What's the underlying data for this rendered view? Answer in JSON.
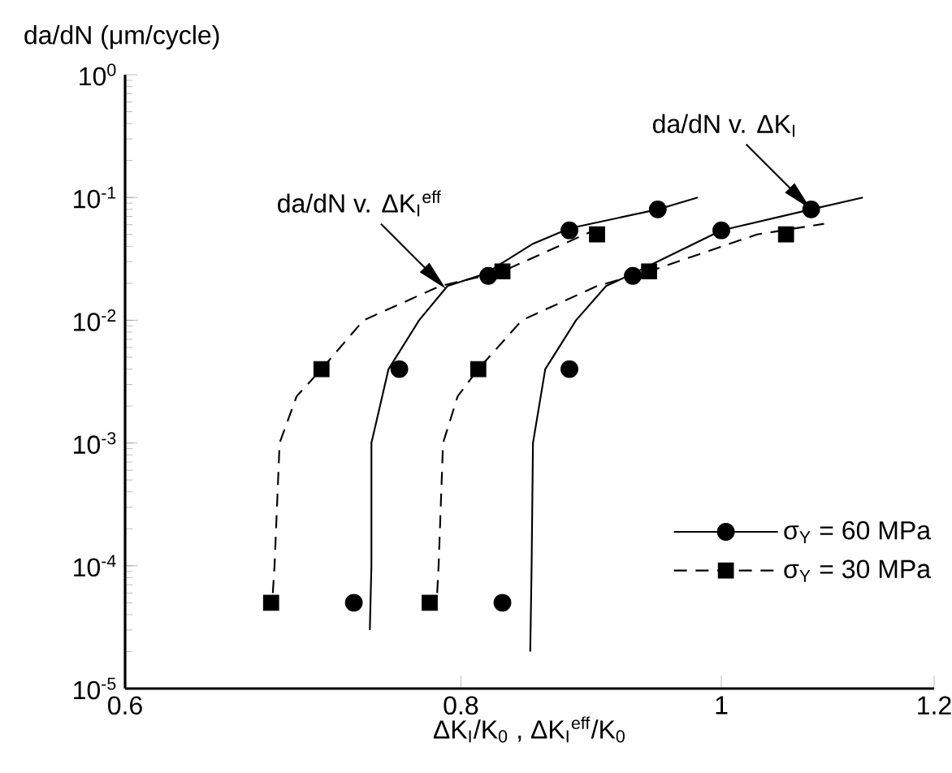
{
  "chart_data": {
    "type": "scatter",
    "xlabel": "ΔK$_{I}$/K$_{0}$ , ΔK$_{I}$$^{eff}$/K$_{0}$",
    "ylabel": "da/dN (μm/cycle)",
    "log": "xy",
    "xlim": [
      0.6,
      1.2
    ],
    "xticks": [
      0.6,
      0.8,
      1,
      1.2
    ],
    "ylim": [
      1e-05,
      1
    ],
    "yticks": [
      {
        "value": 1e-05,
        "label": "10$^{-5}$"
      },
      {
        "value": 0.0001,
        "label": "10$^{-4}$"
      },
      {
        "value": 0.001,
        "label": "10$^{-3}$"
      },
      {
        "value": 0.01,
        "label": "10$^{-2}$"
      },
      {
        "value": 0.1,
        "label": "10$^{-1}$"
      },
      {
        "value": 1,
        "label": "10$^{0}$"
      }
    ],
    "legend": "bottom right",
    "series": [
      {
        "name": "σ$_{Y}$ = 60 MPa",
        "marker": "circle",
        "line_style": "solid",
        "color": "#000000",
        "x": [
          0.73,
          0.759,
          0.819,
          0.878,
          0.947,
          0.829,
          0.878,
          0.927,
          1.0,
          1.08
        ],
        "values": [
          5e-05,
          0.004,
          0.023,
          0.054,
          0.08,
          5e-05,
          0.004,
          0.023,
          0.054,
          0.08
        ]
      },
      {
        "name": "σ$_{Y}$ = 30 MPa",
        "marker": "square",
        "line_style": "dashed",
        "color": "#000000",
        "x": [
          0.68,
          0.71,
          0.829,
          0.899,
          0.779,
          0.812,
          0.94,
          1.057
        ],
        "values": [
          5e-05,
          0.004,
          0.025,
          0.05,
          5e-05,
          0.004,
          0.025,
          0.05
        ]
      },
      {
        "type": "line",
        "line_style": "solid",
        "color": "#000000",
        "x": [
          0.74,
          0.741,
          0.741,
          0.752,
          0.772,
          0.791,
          0.817,
          0.851,
          0.878,
          0.947,
          0.98
        ],
        "values": [
          3e-05,
          0.0001,
          0.001,
          0.004,
          0.01,
          0.019,
          0.024,
          0.042,
          0.056,
          0.08,
          0.1
        ]
      },
      {
        "type": "line",
        "line_style": "solid",
        "color": "#000000",
        "x": [
          0.849,
          0.85,
          0.851,
          0.86,
          0.883,
          0.906,
          0.927,
          1.0,
          1.08,
          1.129
        ],
        "values": [
          2e-05,
          0.0001,
          0.001,
          0.004,
          0.01,
          0.019,
          0.024,
          0.054,
          0.08,
          0.1
        ]
      },
      {
        "type": "line",
        "line_style": "dashed",
        "color": "#000000",
        "x": [
          0.681,
          0.682,
          0.685,
          0.695,
          0.71,
          0.736,
          0.786,
          0.829,
          0.9
        ],
        "values": [
          6e-05,
          0.0001,
          0.001,
          0.0024,
          0.004,
          0.01,
          0.019,
          0.025,
          0.056
        ]
      },
      {
        "type": "line",
        "line_style": "dashed",
        "color": "#000000",
        "x": [
          0.784,
          0.785,
          0.788,
          0.798,
          0.812,
          0.843,
          0.899,
          0.94,
          1.031,
          1.092
        ],
        "values": [
          6e-05,
          0.0001,
          0.001,
          0.0024,
          0.004,
          0.01,
          0.019,
          0.025,
          0.05,
          0.061
        ]
      }
    ],
    "annotations": [
      {
        "text": "da/dN v. ΔK$_{I}$$^{eff}$",
        "x": 0.79,
        "y": 0.018
      },
      {
        "text": "da/dN v. ΔK$_{I}$",
        "x": 1.08,
        "y": 0.08
      }
    ]
  }
}
